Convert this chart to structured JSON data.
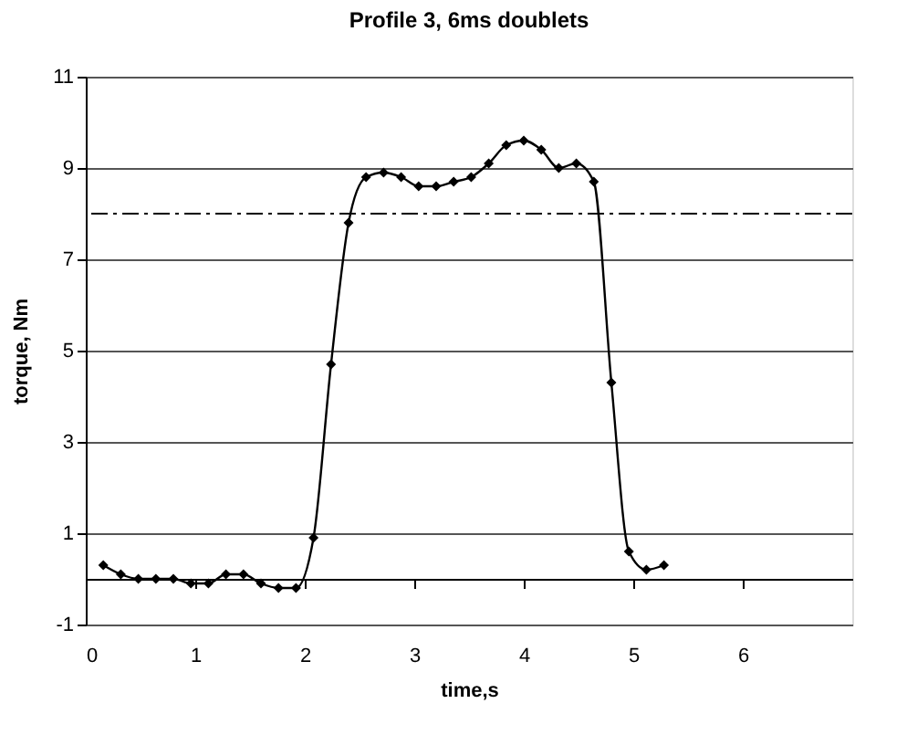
{
  "chart_data": {
    "type": "line",
    "title": "Profile 3, 6ms doublets",
    "xlabel": "time,s",
    "ylabel": "torque, Nm",
    "series": [
      {
        "color": "#000000",
        "marker": "diamond",
        "line_style": "solid",
        "x": [
          0.16,
          0.32,
          0.48,
          0.64,
          0.8,
          0.96,
          1.12,
          1.28,
          1.44,
          1.6,
          1.76,
          1.92,
          2.08,
          2.24,
          2.4,
          2.56,
          2.72,
          2.88,
          3.04,
          3.2,
          3.36,
          3.52,
          3.68,
          3.84,
          4,
          4.16,
          4.32,
          4.48,
          4.64,
          4.8,
          4.96,
          5.12,
          5.28
        ],
        "values": [
          0.3,
          0.1,
          0,
          0,
          0,
          -0.1,
          -0.1,
          0.1,
          0.1,
          -0.1,
          -0.2,
          -0.2,
          0.9,
          4.7,
          7.8,
          8.8,
          8.9,
          8.8,
          8.6,
          8.6,
          8.7,
          8.8,
          9.1,
          9.5,
          9.6,
          9.4,
          9.0,
          9.1,
          8.7,
          4.3,
          0.6,
          0.2,
          0.3
        ]
      }
    ],
    "xlim": [
      0,
      7
    ],
    "xticks": [
      0,
      1,
      2,
      3,
      4,
      5,
      6
    ],
    "ylim": [
      -1,
      11
    ],
    "yticks": [
      -1,
      1,
      3,
      5,
      7,
      9,
      11
    ],
    "grid": "y",
    "ref_lines": [
      {
        "axis": "y",
        "value": 8,
        "color": "#000000",
        "line_style": "dashed"
      }
    ]
  }
}
